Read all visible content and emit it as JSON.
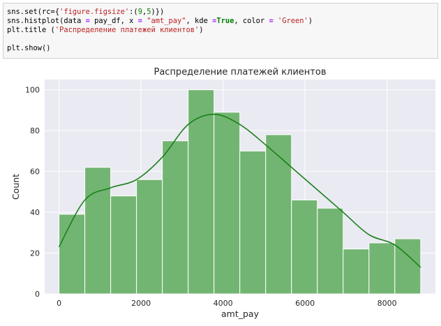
{
  "code_cell": {
    "line1": {
      "a": "sns.set(rc={",
      "b": "'figure.figsize'",
      "c": ":(",
      "d": "9",
      "e": ",",
      "f": "5",
      "g": ")})"
    },
    "line2": {
      "a": "sns.histplot(data ",
      "b": "=",
      "c": " pay_df, x ",
      "d": "=",
      "e": " ",
      "f": "\"amt_pay\"",
      "g": ", kde ",
      "h": "=",
      "i": "True",
      "j": ", color ",
      "k": "=",
      "l": " ",
      "m": "'Green'",
      "n": ")"
    },
    "line3": {
      "a": "plt.title (",
      "b": "'Распределение платежей клиентов'",
      "c": ")"
    },
    "line4": {
      "a": "plt.show()"
    }
  },
  "chart_data": {
    "type": "bar",
    "title": "Распределение платежей клиентов",
    "xlabel": "amt_pay",
    "ylabel": "Count",
    "bin_edges": [
      0,
      630,
      1260,
      1890,
      2520,
      3150,
      3780,
      4410,
      5040,
      5670,
      6300,
      6930,
      7560,
      8190,
      8820
    ],
    "values": [
      39,
      62,
      48,
      56,
      75,
      100,
      89,
      70,
      78,
      46,
      42,
      22,
      25,
      27
    ],
    "kde": {
      "x": [
        0,
        630,
        1260,
        1890,
        2520,
        3150,
        3780,
        4410,
        5040,
        5670,
        6300,
        6930,
        7560,
        8190,
        8820
      ],
      "y": [
        23,
        46,
        52,
        56,
        67,
        83,
        88,
        83,
        73,
        62,
        51,
        40,
        29,
        24,
        13
      ]
    },
    "xlim": [
      -350,
      9180
    ],
    "ylim": [
      0,
      105
    ],
    "xticks": [
      0,
      2000,
      4000,
      6000,
      8000
    ],
    "xtick_labels": [
      "0",
      "2000",
      "4000",
      "6000",
      "8000"
    ],
    "yticks": [
      0,
      20,
      40,
      60,
      80,
      100
    ],
    "ytick_labels": [
      "0",
      "20",
      "40",
      "60",
      "80",
      "100"
    ],
    "grid": true,
    "colors": {
      "bar_fill": "#72b572",
      "bar_edge": "#ffffff",
      "kde": "#1a801a",
      "plot_bg": "#eaeaf2",
      "grid": "#ffffff"
    }
  }
}
